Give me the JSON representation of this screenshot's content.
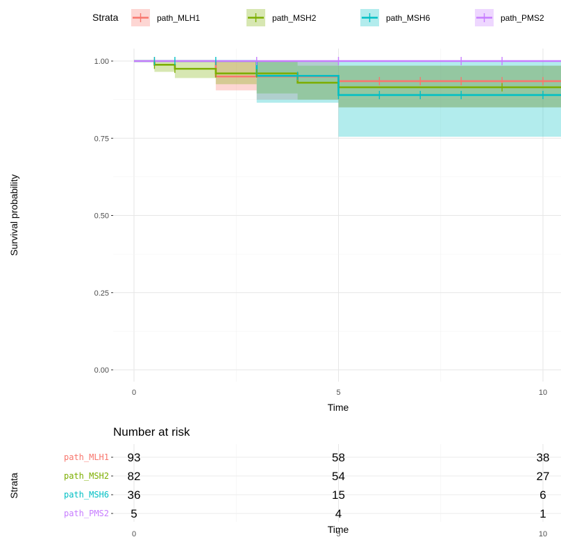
{
  "chart_data": {
    "type": "line",
    "subtype": "kaplan-meier",
    "legend": {
      "title": "Strata",
      "position": "top"
    },
    "xlabel": "Time",
    "ylabel": "Survival probability",
    "xlim": [
      0,
      10.5
    ],
    "ylim": [
      0,
      1
    ],
    "x_ticks": [
      "0",
      "5",
      "10"
    ],
    "y_ticks": [
      "0.00",
      "0.25",
      "0.50",
      "0.75",
      "1.00"
    ],
    "grid": true,
    "series": [
      {
        "name": "path_MLH1",
        "color": "#F8766D",
        "steps": [
          [
            0,
            1.0
          ],
          [
            2.0,
            0.95
          ],
          [
            5.0,
            0.935
          ]
        ],
        "ci": [
          [
            0,
            1.0,
            1.0
          ],
          [
            2.0,
            1.0,
            0.905
          ],
          [
            3.0,
            1.0,
            0.875
          ],
          [
            5.0,
            0.985,
            0.85
          ]
        ],
        "censor_times": [
          0.5,
          4.0,
          6.0,
          7.0,
          8.0,
          9.0,
          10.0
        ]
      },
      {
        "name": "path_MSH2",
        "color": "#7CAE00",
        "steps": [
          [
            0,
            1.0
          ],
          [
            0.5,
            0.988
          ],
          [
            1.0,
            0.975
          ],
          [
            2.0,
            0.96
          ],
          [
            4.0,
            0.93
          ],
          [
            5.0,
            0.915
          ]
        ],
        "ci": [
          [
            0,
            1.0,
            1.0
          ],
          [
            0.5,
            1.0,
            0.965
          ],
          [
            1.0,
            1.0,
            0.945
          ],
          [
            2.0,
            1.0,
            0.925
          ],
          [
            3.0,
            1.0,
            0.895
          ],
          [
            4.0,
            0.985,
            0.875
          ],
          [
            5.0,
            0.985,
            0.85
          ]
        ],
        "censor_times": [
          0.5,
          1.0,
          2.0,
          3.0,
          9.0,
          10.5
        ]
      },
      {
        "name": "path_MSH6",
        "color": "#00BFC4",
        "steps": [
          [
            0,
            1.0
          ],
          [
            3.0,
            0.952
          ],
          [
            5.0,
            0.89
          ]
        ],
        "ci": [
          [
            0,
            1.0,
            1.0
          ],
          [
            3.0,
            1.0,
            0.865
          ],
          [
            5.0,
            1.0,
            0.755
          ]
        ],
        "censor_times": [
          0.5,
          1.0,
          2.0,
          4.0,
          5.0,
          6.0,
          7.0,
          8.0,
          10.0
        ]
      },
      {
        "name": "path_PMS2",
        "color": "#C77CFF",
        "steps": [
          [
            0,
            1.0
          ]
        ],
        "ci": [
          [
            0,
            1.0,
            1.0
          ]
        ],
        "censor_times": [
          3.0,
          5.0,
          8.0,
          9.0
        ]
      }
    ],
    "risk_table": {
      "title": "Number at risk",
      "ylabel": "Strata",
      "xlabel": "Time",
      "x_ticks": [
        "0",
        "5",
        "10"
      ],
      "times": [
        0,
        5,
        10
      ],
      "rows": [
        {
          "name": "path_MLH1",
          "values": [
            "93",
            "58",
            "38"
          ]
        },
        {
          "name": "path_MSH2",
          "values": [
            "82",
            "54",
            "27"
          ]
        },
        {
          "name": "path_MSH6",
          "values": [
            "36",
            "15",
            "6"
          ]
        },
        {
          "name": "path_PMS2",
          "values": [
            "5",
            "4",
            "1"
          ]
        }
      ]
    }
  }
}
